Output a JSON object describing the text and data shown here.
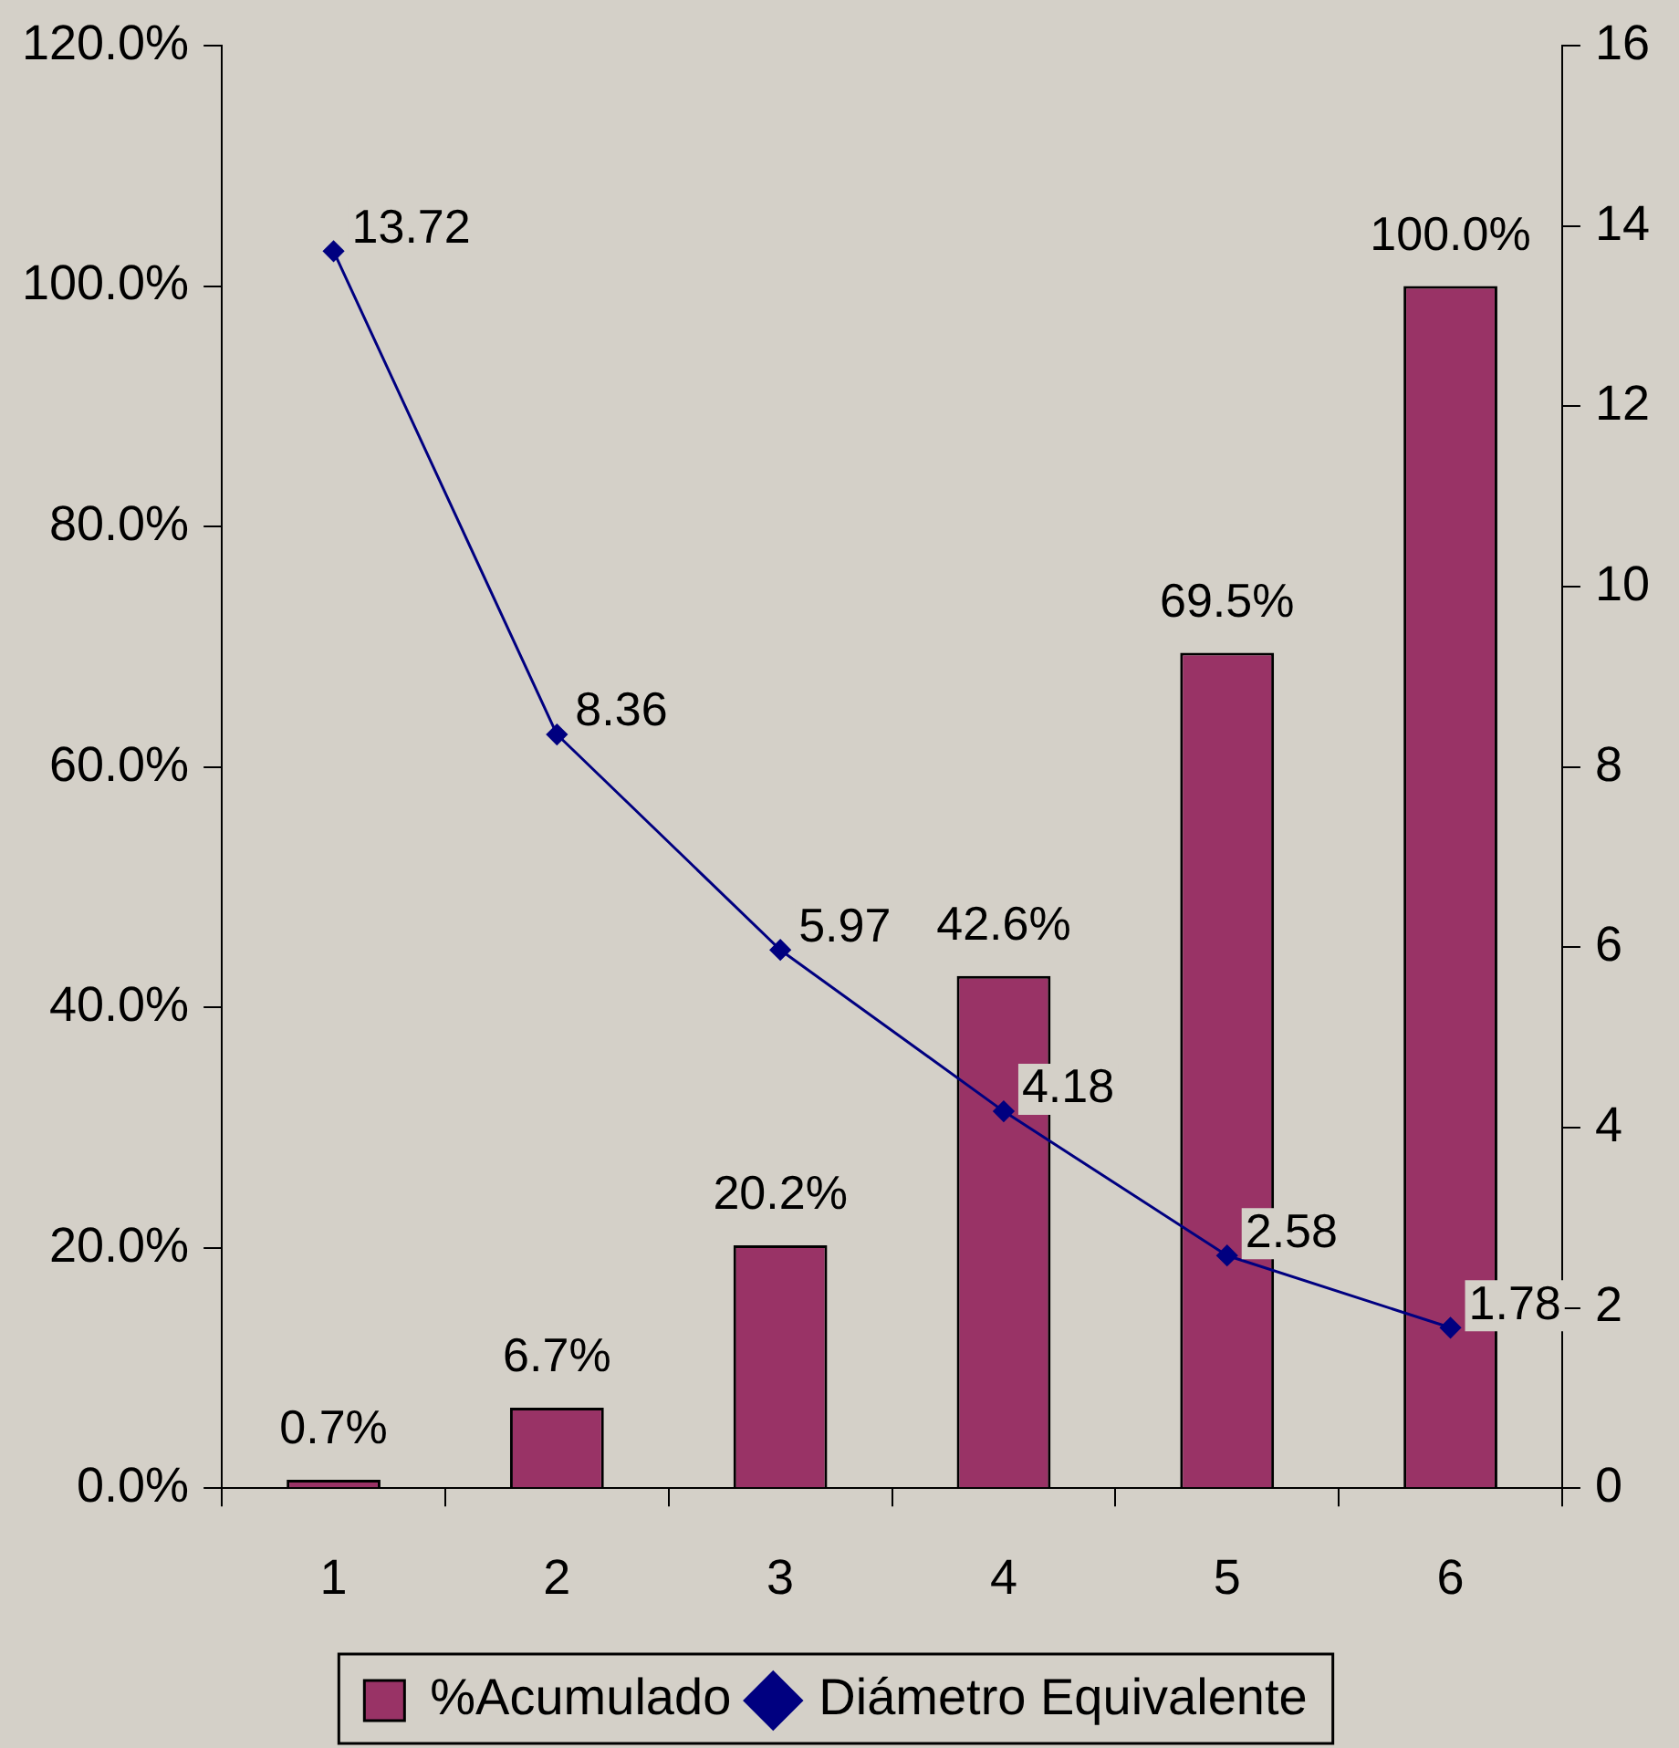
{
  "chart_data": {
    "type": "bar",
    "categories": [
      "1",
      "2",
      "3",
      "4",
      "5",
      "6"
    ],
    "series": [
      {
        "name": "%Acumulado",
        "color": "#993366",
        "values": [
          0.7,
          6.7,
          20.2,
          42.6,
          69.5,
          100.0
        ],
        "value_labels": [
          "0.7%",
          "6.7%",
          "20.2%",
          "42.6%",
          "69.5%",
          "100.0%"
        ]
      },
      {
        "name": "Diámetro Equivalente",
        "type": "line",
        "axis": "y2",
        "color": "#000080",
        "values": [
          13.72,
          8.36,
          5.97,
          4.18,
          2.58,
          1.78
        ],
        "value_labels": [
          "13.72",
          "8.36",
          "5.97",
          "4.18",
          "2.58",
          "1.78"
        ]
      }
    ],
    "ylim": [
      0,
      120
    ],
    "yticks": [
      {
        "value": 0,
        "label": "0.0%"
      },
      {
        "value": 20,
        "label": "20.0%"
      },
      {
        "value": 40,
        "label": "40.0%"
      },
      {
        "value": 60,
        "label": "60.0%"
      },
      {
        "value": 80,
        "label": "80.0%"
      },
      {
        "value": 100,
        "label": "100.0%"
      },
      {
        "value": 120,
        "label": "120.0%"
      }
    ],
    "y2lim": [
      0,
      16
    ],
    "y2ticks": [
      0,
      2,
      4,
      6,
      8,
      10,
      12,
      14,
      16
    ],
    "grid": false,
    "legend": "bottom",
    "marker": "diamond",
    "line_style": "solid"
  }
}
